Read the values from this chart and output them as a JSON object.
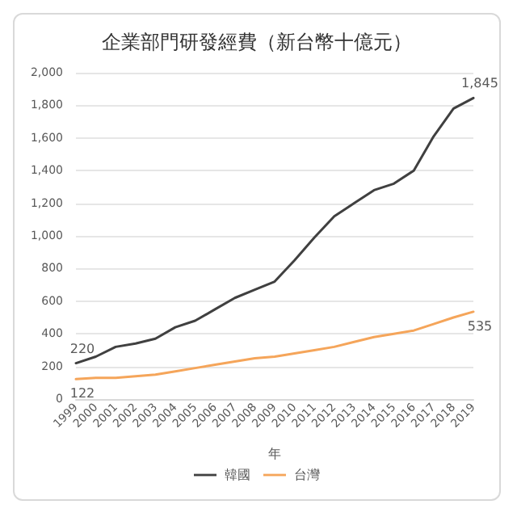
{
  "chart_data": {
    "type": "line",
    "title": "企業部門研發經費（新台幣十億元）",
    "xlabel": "年",
    "categories": [
      "1999",
      "2000",
      "2001",
      "2002",
      "2003",
      "2004",
      "2005",
      "2006",
      "2007",
      "2008",
      "2009",
      "2010",
      "2011",
      "2012",
      "2013",
      "2014",
      "2015",
      "2016",
      "2017",
      "2018",
      "2019"
    ],
    "series": [
      {
        "name": "韓國",
        "color": "#404040",
        "values": [
          220,
          260,
          320,
          340,
          370,
          440,
          480,
          550,
          620,
          670,
          720,
          850,
          990,
          1120,
          1200,
          1280,
          1320,
          1400,
          1610,
          1780,
          1845
        ],
        "value_labels": [
          "220",
          null,
          null,
          null,
          null,
          null,
          null,
          null,
          null,
          null,
          null,
          null,
          null,
          null,
          null,
          null,
          null,
          null,
          null,
          null,
          "1,845"
        ]
      },
      {
        "name": "台灣",
        "color": "#f5a55a",
        "values": [
          122,
          130,
          130,
          140,
          150,
          170,
          190,
          210,
          230,
          250,
          260,
          280,
          300,
          320,
          350,
          380,
          400,
          420,
          460,
          500,
          535
        ],
        "value_labels": [
          "122",
          null,
          null,
          null,
          null,
          null,
          null,
          null,
          null,
          null,
          null,
          null,
          null,
          null,
          null,
          null,
          null,
          null,
          null,
          null,
          "535"
        ]
      }
    ],
    "ylim": [
      0,
      2000
    ],
    "yticks": [
      0,
      200,
      400,
      600,
      800,
      {
        "value": 1000,
        "label": "1,000"
      },
      {
        "value": 1200,
        "label": "1,200"
      },
      {
        "value": 1400,
        "label": "1,400"
      },
      {
        "value": 1600,
        "label": "1,600"
      },
      {
        "value": 1800,
        "label": "1,800"
      },
      {
        "value": 2000,
        "label": "2,000"
      }
    ],
    "grid": "y",
    "legend": "bottom",
    "marker": "none",
    "line_style": "solid"
  }
}
